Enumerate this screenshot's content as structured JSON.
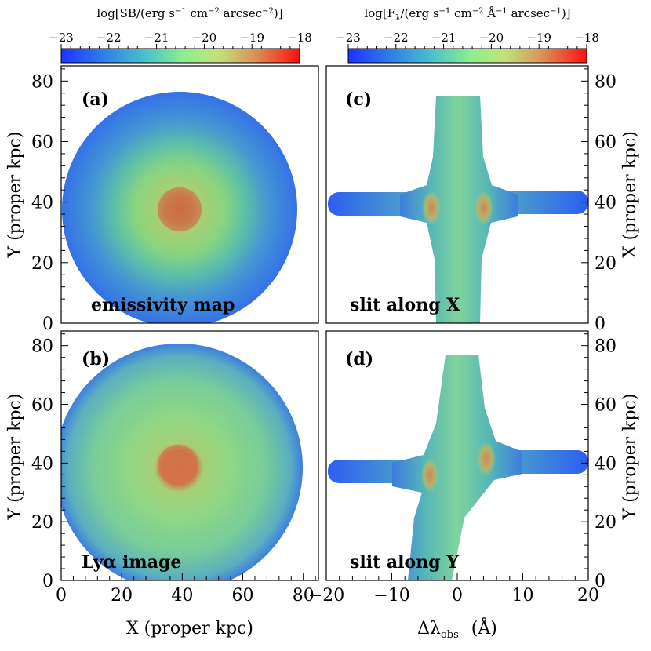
{
  "chart_data": {
    "type": "heatmap",
    "colorbars": [
      {
        "label_pre": "log[SB/(erg s",
        "sup1": "−1",
        "label_mid1": " cm",
        "sup2": "−2",
        "label_mid2": " arcsec",
        "sup3": "−2",
        "label_post": ")]",
        "ticks": [
          "−23",
          "−22",
          "−21",
          "−20",
          "−19",
          "−18"
        ],
        "range": [
          -23,
          -18
        ]
      },
      {
        "label_pre": "log[F",
        "sub": "λ",
        "label_mid0": "/(erg s",
        "sup1": "−1",
        "label_mid1": " cm",
        "sup2": "−2",
        "label_mid2": " Å",
        "sup3": "−1",
        "label_mid3": " arcsec",
        "sup4": "−1",
        "label_post": ")]",
        "ticks": [
          "−23",
          "−22",
          "−21",
          "−20",
          "−19",
          "−18"
        ],
        "range": [
          -23,
          -18
        ]
      }
    ],
    "panels": [
      {
        "id": "a",
        "tag": "(a)",
        "caption": "emissivity map",
        "kind": "disk",
        "center": [
          37,
          37
        ],
        "radius": 37,
        "peak": -19.0,
        "edge": -22.6
      },
      {
        "id": "c",
        "tag": "(c)",
        "caption": "slit along X",
        "kind": "cross",
        "peak": -19.6
      },
      {
        "id": "b",
        "tag": "(b)",
        "caption": "Lyα image",
        "kind": "disk",
        "center": [
          37,
          37
        ],
        "radius": 38,
        "peak": -19.2,
        "edge": -22.0
      },
      {
        "id": "d",
        "tag": "(d)",
        "caption": "slit along Y",
        "kind": "cross",
        "peak": -19.6
      }
    ],
    "left_axis": {
      "label": "Y (proper kpc)",
      "ticks": [
        "0",
        "20",
        "40",
        "60",
        "80"
      ],
      "range": [
        0,
        85
      ]
    },
    "right_axis_top": {
      "label": "X (proper kpc)",
      "ticks": [
        "0",
        "20",
        "40",
        "60",
        "80"
      ],
      "range": [
        0,
        85
      ]
    },
    "right_axis_bottom": {
      "label": "Y (proper kpc)",
      "ticks": [
        "0",
        "20",
        "40",
        "60",
        "80"
      ],
      "range": [
        0,
        85
      ]
    },
    "bottom_left_axis": {
      "label": "X (proper kpc)",
      "ticks": [
        "0",
        "20",
        "40",
        "60",
        "80"
      ],
      "range": [
        0,
        85
      ]
    },
    "bottom_right_axis": {
      "label": "Δλ",
      "label_sub": "obs",
      "label_unit": "(Å)",
      "ticks": [
        "−20",
        "−10",
        "0",
        "10",
        "20"
      ],
      "range": [
        -20,
        20
      ]
    }
  }
}
